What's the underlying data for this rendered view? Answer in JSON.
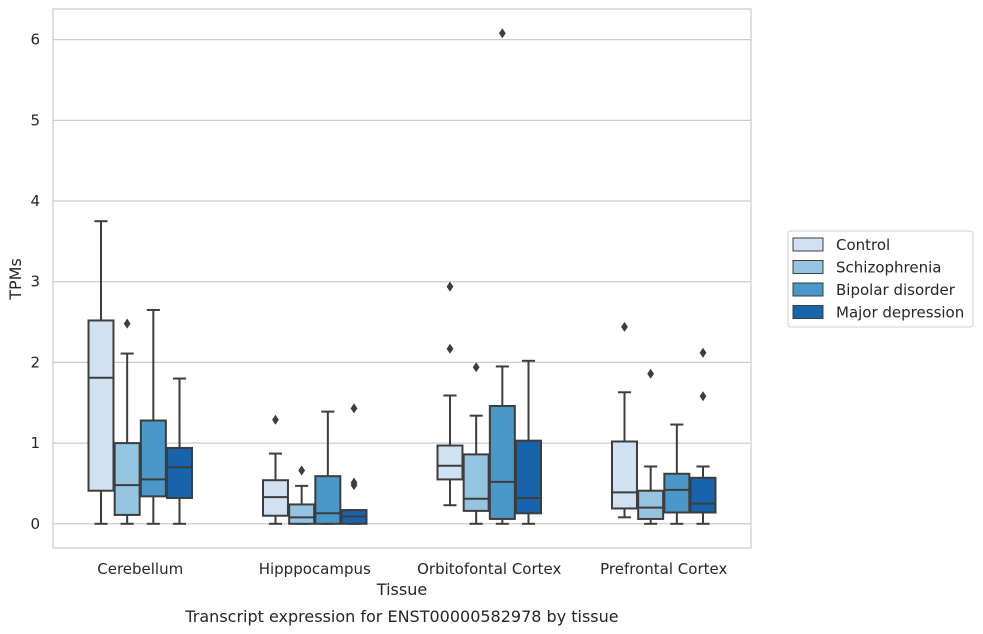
{
  "chart_data": {
    "type": "box",
    "xlabel": "Tissue",
    "ylabel": "TPMs",
    "caption": "Transcript expression for ENST00000582978 by tissue",
    "ylim": [
      -0.3,
      6.38
    ],
    "yticks": [
      0,
      1,
      2,
      3,
      4,
      5,
      6
    ],
    "grid": true,
    "legend_position": "right",
    "categories": [
      "Cerebellum",
      "Hipppocampus",
      "Orbitofontal Cortex",
      "Prefrontal Cortex"
    ],
    "series": [
      {
        "name": "Control",
        "color": "#d0e1f2",
        "boxes": [
          {
            "whislo": 0.0,
            "q1": 0.41,
            "med": 1.81,
            "q3": 2.52,
            "whishi": 3.75,
            "fliers": []
          },
          {
            "whislo": 0.0,
            "q1": 0.1,
            "med": 0.33,
            "q3": 0.54,
            "whishi": 0.87,
            "fliers": [
              1.29
            ]
          },
          {
            "whislo": 0.23,
            "q1": 0.55,
            "med": 0.72,
            "q3": 0.97,
            "whishi": 1.59,
            "fliers": [
              2.17,
              2.94
            ]
          },
          {
            "whislo": 0.08,
            "q1": 0.19,
            "med": 0.39,
            "q3": 1.02,
            "whishi": 1.63,
            "fliers": [
              2.44
            ]
          }
        ]
      },
      {
        "name": "Schizophrenia",
        "color": "#94c4df",
        "boxes": [
          {
            "whislo": 0.0,
            "q1": 0.11,
            "med": 0.48,
            "q3": 1.0,
            "whishi": 2.11,
            "fliers": [
              2.48
            ]
          },
          {
            "whislo": 0.0,
            "q1": 0.0,
            "med": 0.08,
            "q3": 0.24,
            "whishi": 0.47,
            "fliers": [
              0.66
            ]
          },
          {
            "whislo": 0.0,
            "q1": 0.16,
            "med": 0.31,
            "q3": 0.86,
            "whishi": 1.34,
            "fliers": [
              1.94
            ]
          },
          {
            "whislo": 0.0,
            "q1": 0.06,
            "med": 0.2,
            "q3": 0.41,
            "whishi": 0.71,
            "fliers": [
              1.86
            ]
          }
        ]
      },
      {
        "name": "Bipolar disorder",
        "color": "#4a98c9",
        "boxes": [
          {
            "whislo": 0.0,
            "q1": 0.34,
            "med": 0.55,
            "q3": 1.28,
            "whishi": 2.65,
            "fliers": []
          },
          {
            "whislo": 0.0,
            "q1": 0.0,
            "med": 0.13,
            "q3": 0.59,
            "whishi": 1.39,
            "fliers": []
          },
          {
            "whislo": 0.0,
            "q1": 0.06,
            "med": 0.52,
            "q3": 1.46,
            "whishi": 1.95,
            "fliers": [
              6.08
            ]
          },
          {
            "whislo": 0.0,
            "q1": 0.14,
            "med": 0.42,
            "q3": 0.62,
            "whishi": 1.23,
            "fliers": []
          }
        ]
      },
      {
        "name": "Major depression",
        "color": "#1764ab",
        "boxes": [
          {
            "whislo": 0.0,
            "q1": 0.32,
            "med": 0.7,
            "q3": 0.94,
            "whishi": 1.8,
            "fliers": []
          },
          {
            "whislo": 0.0,
            "q1": 0.0,
            "med": 0.09,
            "q3": 0.17,
            "whishi": 0.17,
            "fliers": [
              0.48,
              0.51,
              1.43
            ]
          },
          {
            "whislo": 0.0,
            "q1": 0.13,
            "med": 0.32,
            "q3": 1.03,
            "whishi": 2.02,
            "fliers": []
          },
          {
            "whislo": 0.0,
            "q1": 0.14,
            "med": 0.25,
            "q3": 0.57,
            "whishi": 0.71,
            "fliers": [
              1.58,
              2.12
            ]
          }
        ]
      }
    ]
  }
}
